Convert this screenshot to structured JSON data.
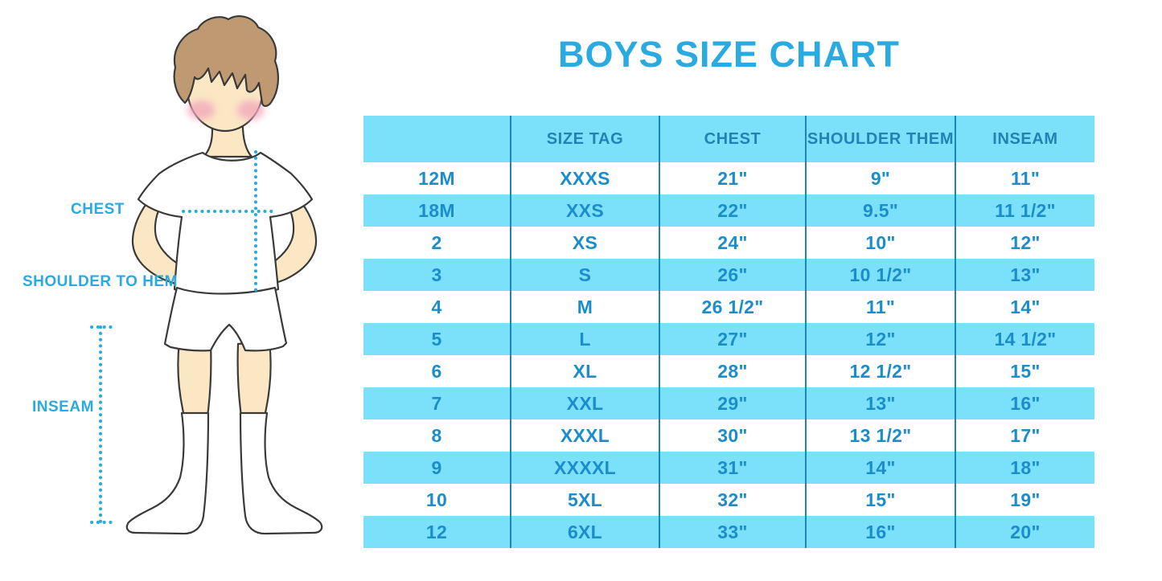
{
  "title": "BOYS SIZE CHART",
  "colors": {
    "accent": "#29ABE2",
    "row_cyan": "#7BE1FB",
    "header_text": "#1F83B4",
    "cell_text": "#1C8DCB",
    "divider": "#1D86B8",
    "skin": "#FBE7C4",
    "hair": "#BE9972",
    "blush": "#F2A8BD",
    "outline": "#3A3A3A"
  },
  "diagram": {
    "chest_label": "CHEST",
    "shoulder_to_hem_label": "SHOULDER TO HEM",
    "inseam_label": "INSEAM"
  },
  "chart_data": {
    "type": "table",
    "title": "BOYS SIZE CHART",
    "columns": [
      "",
      "SIZE TAG",
      "CHEST",
      "SHOULDER THEM",
      "INSEAM"
    ],
    "rows": [
      [
        "12M",
        "XXXS",
        "21\"",
        "9\"",
        "11\""
      ],
      [
        "18M",
        "XXS",
        "22\"",
        "9.5\"",
        "11 1/2\""
      ],
      [
        "2",
        "XS",
        "24\"",
        "10\"",
        "12\""
      ],
      [
        "3",
        "S",
        "26\"",
        "10 1/2\"",
        "13\""
      ],
      [
        "4",
        "M",
        "26 1/2\"",
        "11\"",
        "14\""
      ],
      [
        "5",
        "L",
        "27\"",
        "12\"",
        "14 1/2\""
      ],
      [
        "6",
        "XL",
        "28\"",
        "12 1/2\"",
        "15\""
      ],
      [
        "7",
        "XXL",
        "29\"",
        "13\"",
        "16\""
      ],
      [
        "8",
        "XXXL",
        "30\"",
        "13 1/2\"",
        "17\""
      ],
      [
        "9",
        "XXXXL",
        "31\"",
        "14\"",
        "18\""
      ],
      [
        "10",
        "5XL",
        "32\"",
        "15\"",
        "19\""
      ],
      [
        "12",
        "6XL",
        "33\"",
        "16\"",
        "20\""
      ]
    ],
    "layout": {
      "row_striping": "white / light-cyan alternating, header light-cyan",
      "column_dividers": true
    }
  }
}
